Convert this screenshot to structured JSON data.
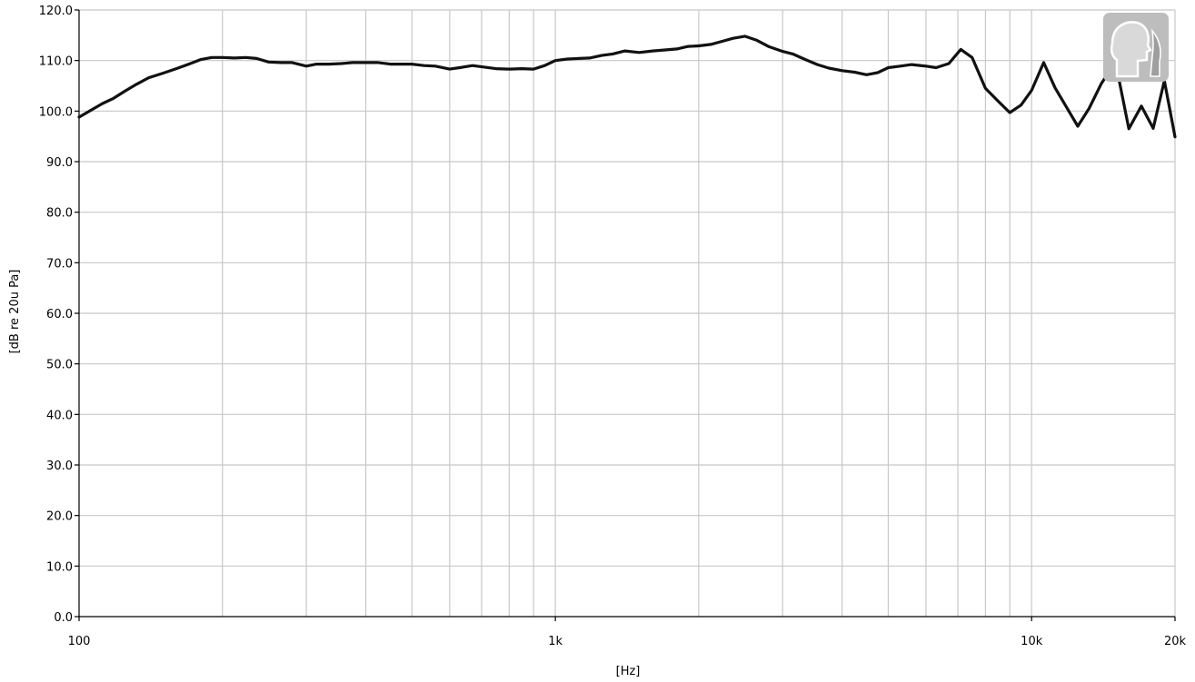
{
  "chart_data": {
    "type": "line",
    "title": "",
    "xlabel": "[Hz]",
    "ylabel": "[dB re 20u Pa]",
    "x_scale": "log",
    "xlim": [
      100,
      20000
    ],
    "ylim": [
      0,
      120
    ],
    "grid": true,
    "x_minor_gridlines": [
      200,
      300,
      400,
      500,
      600,
      700,
      800,
      900,
      2000,
      3000,
      4000,
      5000,
      6000,
      7000,
      8000,
      9000
    ],
    "x_tick_values": [
      100,
      1000,
      10000,
      20000
    ],
    "x_tick_labels": [
      "100",
      "1k",
      "10k",
      "20k"
    ],
    "y_tick_values": [
      0,
      10,
      20,
      30,
      40,
      50,
      60,
      70,
      80,
      90,
      100,
      110,
      120
    ],
    "y_tick_labels": [
      "0.0",
      "10.0",
      "20.0",
      "30.0",
      "40.0",
      "50.0",
      "60.0",
      "70.0",
      "80.0",
      "90.0",
      "100.0",
      "110.0",
      "120.0"
    ],
    "series": [
      {
        "color": "#111111",
        "x": [
          100,
          106,
          112,
          118,
          125,
          132,
          140,
          150,
          160,
          170,
          180,
          190,
          200,
          212,
          224,
          236,
          250,
          265,
          280,
          300,
          315,
          335,
          355,
          375,
          400,
          425,
          450,
          475,
          500,
          530,
          560,
          600,
          630,
          670,
          710,
          750,
          800,
          850,
          900,
          950,
          1000,
          1060,
          1120,
          1180,
          1250,
          1320,
          1400,
          1500,
          1600,
          1700,
          1800,
          1900,
          2000,
          2120,
          2240,
          2360,
          2500,
          2650,
          2800,
          3000,
          3150,
          3350,
          3550,
          3750,
          4000,
          4250,
          4500,
          4750,
          5000,
          5300,
          5600,
          6000,
          6300,
          6700,
          7100,
          7500,
          8000,
          8500,
          9000,
          9500,
          10000,
          10600,
          11200,
          11800,
          12500,
          13200,
          14000,
          15000,
          16000,
          17000,
          18000,
          19000,
          20000
        ],
        "y": [
          98.8,
          100.2,
          101.5,
          102.5,
          104,
          105.3,
          106.6,
          107.5,
          108.4,
          109.3,
          110.2,
          110.6,
          110.6,
          110.5,
          110.6,
          110.4,
          109.7,
          109.6,
          109.6,
          108.9,
          109.3,
          109.3,
          109.4,
          109.6,
          109.6,
          109.6,
          109.3,
          109.3,
          109.3,
          109.0,
          108.9,
          108.3,
          108.6,
          109.0,
          108.7,
          108.4,
          108.3,
          108.4,
          108.3,
          109.0,
          110.0,
          110.3,
          110.4,
          110.5,
          111.0,
          111.3,
          111.9,
          111.6,
          111.9,
          112.1,
          112.3,
          112.8,
          112.9,
          113.2,
          113.8,
          114.4,
          114.8,
          114.0,
          112.8,
          111.8,
          111.3,
          110.2,
          109.2,
          108.5,
          108.0,
          107.7,
          107.2,
          107.6,
          108.6,
          108.9,
          109.2,
          108.9,
          108.6,
          109.4,
          112.2,
          110.6,
          104.5,
          102.0,
          99.7,
          101.2,
          104.1,
          109.6,
          104.6,
          101.0,
          97.0,
          100.5,
          105.4,
          109.7,
          96.5,
          101.0,
          96.6,
          106.0,
          94.9
        ]
      }
    ]
  }
}
